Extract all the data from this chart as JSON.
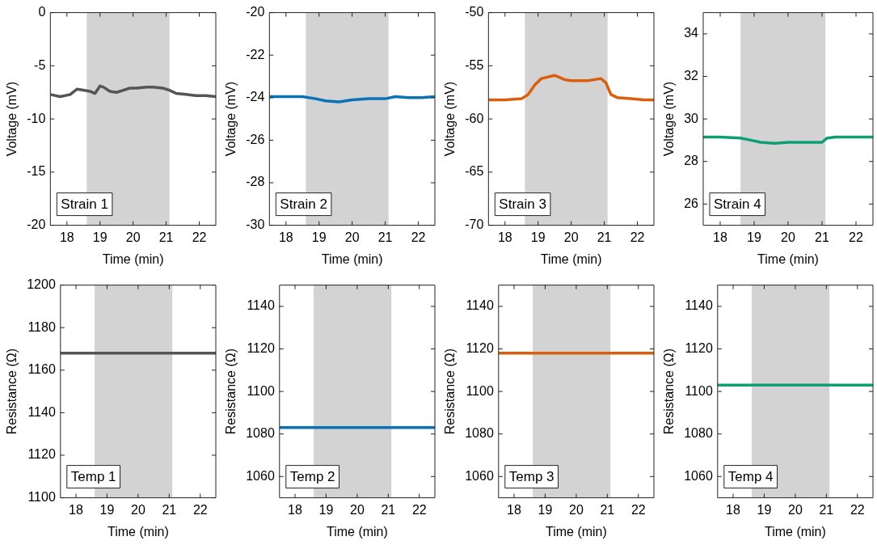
{
  "chart_data": [
    {
      "type": "line",
      "xlabel": "Time (min)",
      "ylabel": "Voltage (mV)",
      "xlim": [
        17.5,
        22.5
      ],
      "xticks": [
        18,
        19,
        20,
        21,
        22
      ],
      "ylim": [
        -20,
        0
      ],
      "yticks": [
        -20,
        -15,
        -10,
        -5,
        0
      ],
      "marker": "none",
      "color": "#555555",
      "annotations": [
        "Strain 1"
      ],
      "bands": [
        {
          "axis": "x",
          "from": 18.6,
          "to": 21.1,
          "color": "#d3d3d3"
        }
      ],
      "x": [
        17.5,
        17.8,
        18.1,
        18.3,
        18.5,
        18.7,
        18.85,
        19.0,
        19.1,
        19.3,
        19.5,
        19.7,
        19.9,
        20.1,
        20.4,
        20.6,
        20.9,
        21.1,
        21.3,
        21.6,
        21.9,
        22.2,
        22.5
      ],
      "values": [
        -7.7,
        -7.9,
        -7.7,
        -7.2,
        -7.3,
        -7.4,
        -7.6,
        -6.9,
        -7.0,
        -7.4,
        -7.5,
        -7.3,
        -7.1,
        -7.1,
        -7.0,
        -7.0,
        -7.1,
        -7.3,
        -7.6,
        -7.7,
        -7.8,
        -7.8,
        -7.9
      ]
    },
    {
      "type": "line",
      "xlabel": "Time (min)",
      "ylabel": "Voltage (mV)",
      "xlim": [
        17.5,
        22.5
      ],
      "xticks": [
        18,
        19,
        20,
        21,
        22
      ],
      "ylim": [
        -30,
        -20
      ],
      "yticks": [
        -30,
        -28,
        -26,
        -24,
        -22,
        -20
      ],
      "marker": "none",
      "color": "#0a72b5",
      "annotations": [
        "Strain 2"
      ],
      "bands": [
        {
          "axis": "x",
          "from": 18.6,
          "to": 21.1,
          "color": "#d3d3d3"
        }
      ],
      "x": [
        17.5,
        18.0,
        18.5,
        18.9,
        19.2,
        19.6,
        20.0,
        20.5,
        21.0,
        21.3,
        21.7,
        22.1,
        22.5
      ],
      "values": [
        -23.95,
        -23.95,
        -23.95,
        -24.05,
        -24.15,
        -24.2,
        -24.1,
        -24.05,
        -24.05,
        -23.95,
        -24.0,
        -24.0,
        -23.95
      ]
    },
    {
      "type": "line",
      "xlabel": "Time (min)",
      "ylabel": "Voltage (mV)",
      "xlim": [
        17.5,
        22.5
      ],
      "xticks": [
        18,
        19,
        20,
        21,
        22
      ],
      "ylim": [
        -70,
        -50
      ],
      "yticks": [
        -70,
        -65,
        -60,
        -55,
        -50
      ],
      "marker": "none",
      "color": "#d95f0e",
      "annotations": [
        "Strain 3"
      ],
      "bands": [
        {
          "axis": "x",
          "from": 18.6,
          "to": 21.1,
          "color": "#d3d3d3"
        }
      ],
      "x": [
        17.5,
        18.0,
        18.5,
        18.7,
        18.9,
        19.1,
        19.5,
        19.8,
        20.0,
        20.5,
        20.9,
        21.05,
        21.2,
        21.4,
        21.8,
        22.2,
        22.5
      ],
      "values": [
        -58.2,
        -58.2,
        -58.1,
        -57.7,
        -56.8,
        -56.2,
        -55.9,
        -56.3,
        -56.4,
        -56.4,
        -56.2,
        -56.6,
        -57.7,
        -58.0,
        -58.1,
        -58.2,
        -58.2
      ]
    },
    {
      "type": "line",
      "xlabel": "Time (min)",
      "ylabel": "Voltage (mV)",
      "xlim": [
        17.5,
        22.5
      ],
      "xticks": [
        18,
        19,
        20,
        21,
        22
      ],
      "ylim": [
        25,
        35
      ],
      "yticks": [
        26,
        28,
        30,
        32,
        34
      ],
      "marker": "none",
      "color": "#0f9e74",
      "annotations": [
        "Strain 4"
      ],
      "bands": [
        {
          "axis": "x",
          "from": 18.6,
          "to": 21.1,
          "color": "#d3d3d3"
        }
      ],
      "x": [
        17.5,
        18.0,
        18.6,
        18.9,
        19.2,
        19.6,
        20.0,
        20.5,
        21.0,
        21.15,
        21.4,
        22.0,
        22.5
      ],
      "values": [
        29.15,
        29.15,
        29.1,
        29.0,
        28.9,
        28.85,
        28.9,
        28.9,
        28.9,
        29.1,
        29.15,
        29.15,
        29.15
      ]
    },
    {
      "type": "line",
      "xlabel": "Time (min)",
      "ylabel": "Resistance (Ω)",
      "xlim": [
        17.5,
        22.5
      ],
      "xticks": [
        18,
        19,
        20,
        21,
        22
      ],
      "ylim": [
        1100,
        1200
      ],
      "yticks": [
        1100,
        1120,
        1140,
        1160,
        1180,
        1200
      ],
      "marker": "none",
      "color": "#555555",
      "annotations": [
        "Temp 1"
      ],
      "bands": [
        {
          "axis": "x",
          "from": 18.6,
          "to": 21.1,
          "color": "#d3d3d3"
        }
      ],
      "x": [
        17.5,
        18.5,
        19.5,
        20.5,
        21.5,
        22.5
      ],
      "values": [
        1168,
        1168,
        1168,
        1168,
        1168,
        1168
      ]
    },
    {
      "type": "line",
      "xlabel": "Time (min)",
      "ylabel": "Resistance (Ω)",
      "xlim": [
        17.5,
        22.5
      ],
      "xticks": [
        18,
        19,
        20,
        21,
        22
      ],
      "ylim": [
        1050,
        1150
      ],
      "yticks": [
        1060,
        1080,
        1100,
        1120,
        1140
      ],
      "marker": "none",
      "color": "#0a72b5",
      "annotations": [
        "Temp 2"
      ],
      "bands": [
        {
          "axis": "x",
          "from": 18.6,
          "to": 21.1,
          "color": "#d3d3d3"
        }
      ],
      "x": [
        17.5,
        18.5,
        19.5,
        20.5,
        21.5,
        22.5
      ],
      "values": [
        1083,
        1083,
        1083,
        1083,
        1083,
        1083
      ]
    },
    {
      "type": "line",
      "xlabel": "Time (min)",
      "ylabel": "Resistance (Ω)",
      "xlim": [
        17.5,
        22.5
      ],
      "xticks": [
        18,
        19,
        20,
        21,
        22
      ],
      "ylim": [
        1050,
        1150
      ],
      "yticks": [
        1060,
        1080,
        1100,
        1120,
        1140
      ],
      "marker": "none",
      "color": "#d95f0e",
      "annotations": [
        "Temp 3"
      ],
      "bands": [
        {
          "axis": "x",
          "from": 18.6,
          "to": 21.1,
          "color": "#d3d3d3"
        }
      ],
      "x": [
        17.5,
        18.5,
        19.5,
        20.5,
        21.5,
        22.5
      ],
      "values": [
        1118,
        1118,
        1118,
        1118,
        1118,
        1118
      ]
    },
    {
      "type": "line",
      "xlabel": "Time (min)",
      "ylabel": "Resistance (Ω)",
      "xlim": [
        17.5,
        22.5
      ],
      "xticks": [
        18,
        19,
        20,
        21,
        22
      ],
      "ylim": [
        1050,
        1150
      ],
      "yticks": [
        1060,
        1080,
        1100,
        1120,
        1140
      ],
      "marker": "none",
      "color": "#0f9e74",
      "annotations": [
        "Temp 4"
      ],
      "bands": [
        {
          "axis": "x",
          "from": 18.6,
          "to": 21.1,
          "color": "#d3d3d3"
        }
      ],
      "x": [
        17.5,
        18.5,
        19.5,
        20.5,
        21.5,
        22.5
      ],
      "values": [
        1103,
        1103,
        1103,
        1103,
        1103,
        1103
      ]
    }
  ]
}
